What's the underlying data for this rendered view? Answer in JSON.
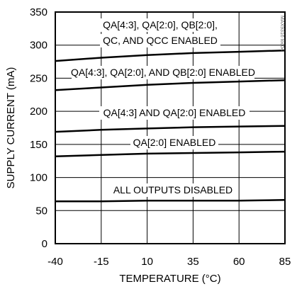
{
  "chart_data": {
    "type": "line",
    "xlabel": "TEMPERATURE (°C)",
    "ylabel": "SUPPLY CURRENT (mA)",
    "xlim": [
      -40,
      85
    ],
    "ylim": [
      0,
      350
    ],
    "xticks": [
      -40,
      -15,
      10,
      35,
      60,
      85
    ],
    "yticks": [
      0,
      50,
      100,
      150,
      200,
      250,
      300,
      350
    ],
    "grid": true,
    "watermark": "MAX9316 toc04",
    "series": [
      {
        "x": [
          -40,
          -15,
          10,
          35,
          60,
          85
        ],
        "y": [
          276,
          281,
          285,
          288,
          290,
          292
        ],
        "label": "QA[4:3], QA[2:0], QB[2:0], QC, AND QCC ENABLED"
      },
      {
        "x": [
          -40,
          -15,
          10,
          35,
          60,
          85
        ],
        "y": [
          232,
          236,
          240,
          243,
          245,
          247
        ],
        "label": "QA[4:3], QA[2:0], AND QB[2:0] ENABLED"
      },
      {
        "x": [
          -40,
          -15,
          10,
          35,
          60,
          85
        ],
        "y": [
          169,
          172,
          174,
          176,
          177,
          178
        ],
        "label": "QA[4:3] AND QA[2:0] ENABLED"
      },
      {
        "x": [
          -40,
          -15,
          10,
          35,
          60,
          85
        ],
        "y": [
          132,
          134,
          136,
          137,
          138,
          139
        ],
        "label": "QA[2:0] ENABLED"
      },
      {
        "x": [
          -40,
          -15,
          10,
          35,
          60,
          85
        ],
        "y": [
          64,
          64,
          65,
          65,
          65,
          66
        ],
        "label": "ALL OUTPUTS DISABLED"
      }
    ]
  }
}
